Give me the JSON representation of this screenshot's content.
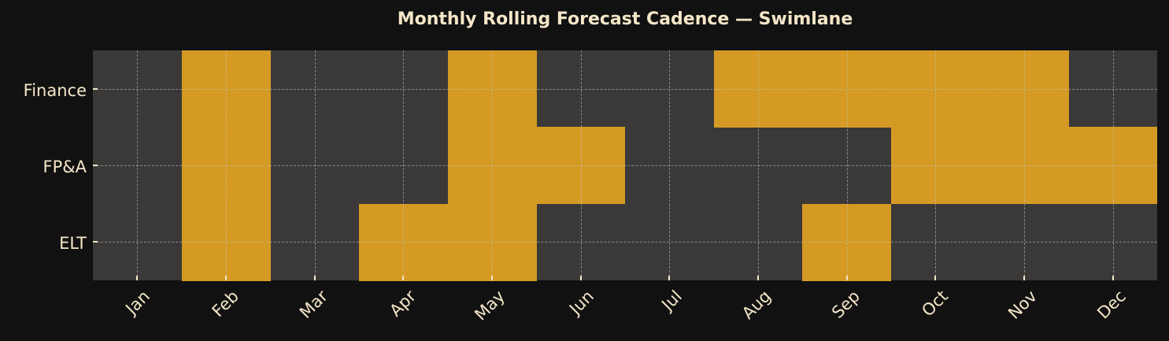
{
  "title": "Monthly Rolling Forecast Cadence — Swimlane",
  "colors": {
    "background": "#111111",
    "plot_bg": "#3a3938",
    "active": "#d49a24",
    "text": "#f5e6c8"
  },
  "chart_data": {
    "type": "heatmap",
    "title": "Monthly Rolling Forecast Cadence — Swimlane",
    "xlabel": "",
    "ylabel": "",
    "x": [
      "Jan",
      "Feb",
      "Mar",
      "Apr",
      "May",
      "Jun",
      "Jul",
      "Aug",
      "Sep",
      "Oct",
      "Nov",
      "Dec"
    ],
    "y": [
      "Finance",
      "FP&A",
      "ELT"
    ],
    "values": [
      [
        0,
        1,
        0,
        0,
        1,
        0,
        0,
        1,
        1,
        1,
        1,
        0
      ],
      [
        0,
        1,
        0,
        0,
        1,
        1,
        0,
        0,
        0,
        1,
        1,
        1
      ],
      [
        0,
        1,
        0,
        1,
        1,
        0,
        0,
        0,
        1,
        0,
        0,
        0
      ]
    ],
    "legend": [],
    "grid": true
  }
}
